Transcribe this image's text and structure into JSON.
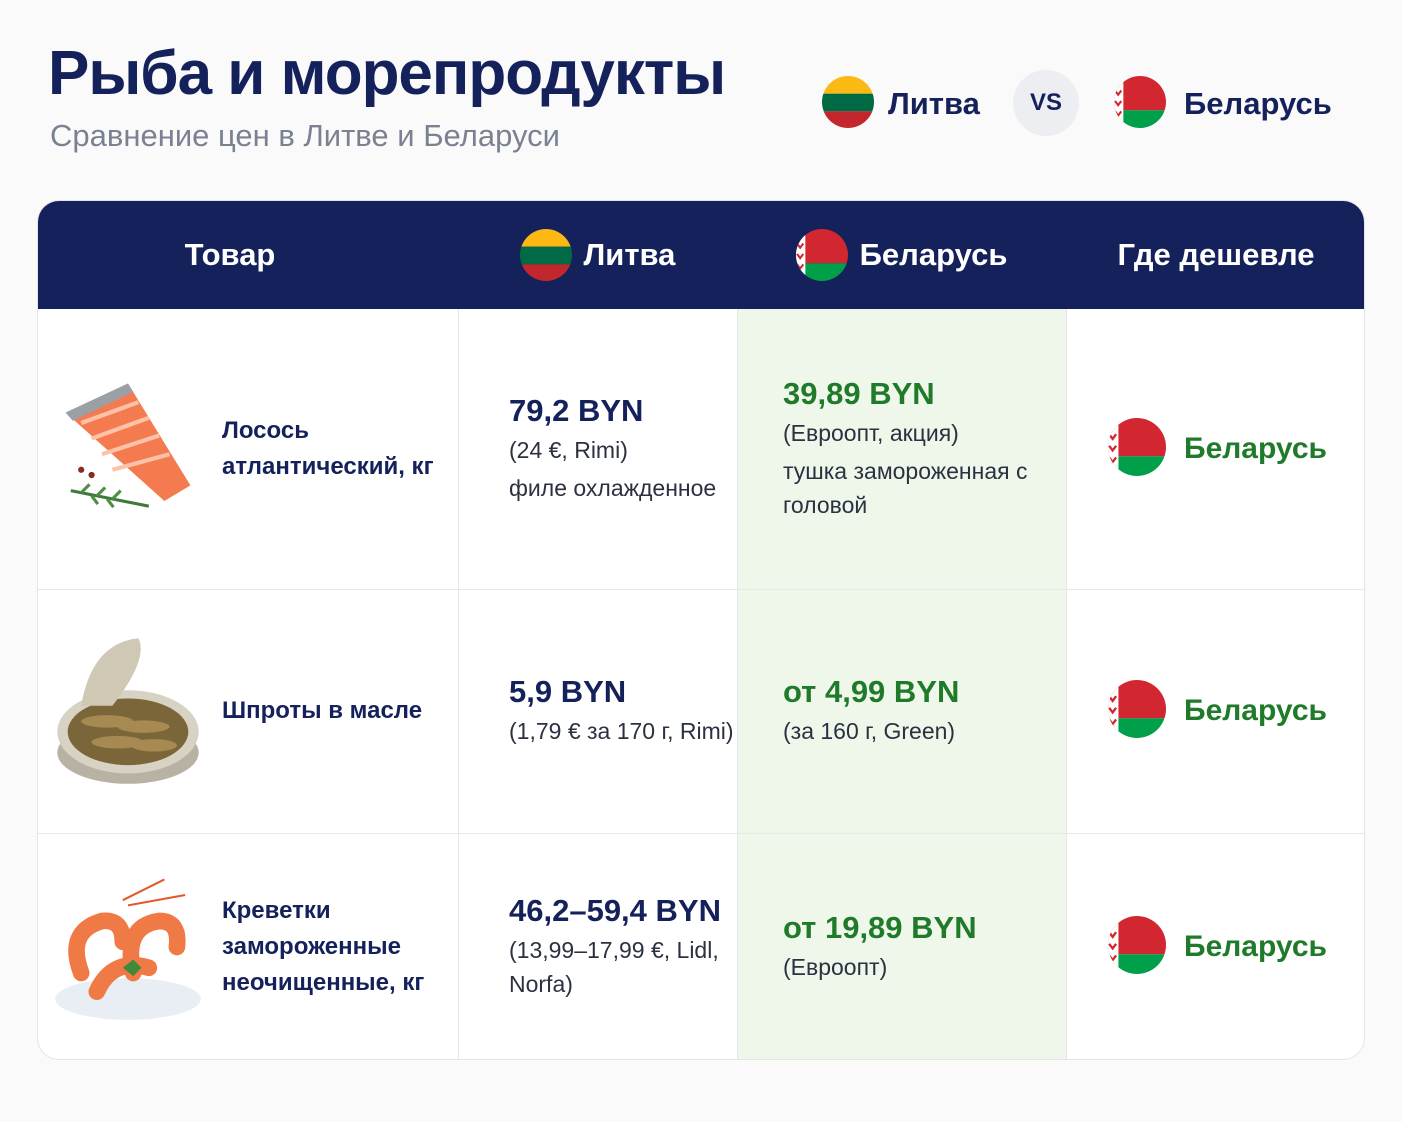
{
  "header": {
    "title": "Рыба и морепродукты",
    "subtitle": "Сравнение цен в Литве и Беларуси",
    "left": "Литва",
    "vs": "VS",
    "right": "Беларусь"
  },
  "table": {
    "columns": [
      "Товар",
      "Литва",
      "Беларусь",
      "Где дешевле"
    ],
    "rows": [
      {
        "product": "Лосось атлантический, кг",
        "lt_price": "79,2 BYN",
        "lt_notes": [
          "(24 €, Rimi)",
          "филе охлажденное"
        ],
        "by_price": "39,89 BYN",
        "by_notes": [
          "(Евроопт, акция)",
          "тушка замороженная с головой"
        ],
        "cheaper": "Беларусь"
      },
      {
        "product": "Шпроты в масле",
        "lt_price": "5,9 BYN",
        "lt_notes": [
          "(1,79 € за 170 г, Rimi)"
        ],
        "by_price": "от 4,99 BYN",
        "by_notes": [
          "(за 160 г, Green)"
        ],
        "cheaper": "Беларусь"
      },
      {
        "product": "Креветки замороженные неочищенные, кг",
        "lt_price": "46,2–59,4 BYN",
        "lt_notes": [
          "(13,99–17,99 €, Lidl, Norfa)"
        ],
        "by_price": "от 19,89 BYN",
        "by_notes": [
          "(Евроопт)"
        ],
        "cheaper": "Беларусь"
      }
    ]
  }
}
